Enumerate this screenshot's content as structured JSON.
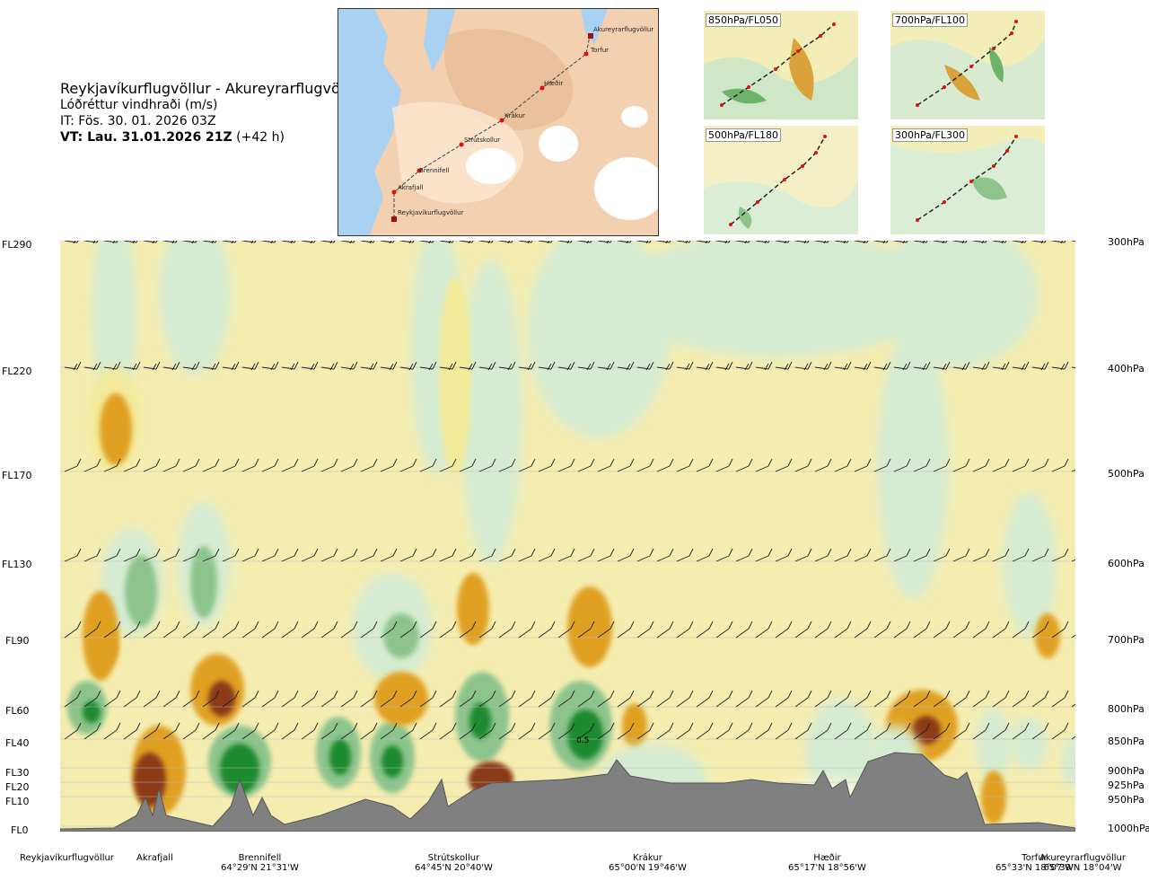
{
  "header": {
    "title": "Reykjavíkurflugvöllur - Akureyrarflugvöllur",
    "subtitle": "Lóðréttur vindhraði (m/s)",
    "issue_time": "IT: Fös. 30. 01. 2026 03Z",
    "valid_time_bold": "VT: Lau. 31.01.2026 21Z",
    "valid_time_offset": "(+42 h)"
  },
  "route_map": {
    "waypoints": [
      "Akureyrarflugvöllur",
      "Torfur",
      "Hæðir",
      "Krákur",
      "Strútskollur",
      "Brennifell",
      "Akrafjall",
      "Reykjavíkurflugvöllur"
    ]
  },
  "insets": [
    {
      "label": "850hPa/FL050"
    },
    {
      "label": "700hPa/FL100"
    },
    {
      "label": "500hPa/FL180"
    },
    {
      "label": "300hPa/FL300"
    }
  ],
  "chart_data": {
    "type": "heatmap",
    "title": "Lóðréttur vindhraði (m/s)",
    "y_left_ticks": [
      "FL290",
      "FL220",
      "FL170",
      "FL130",
      "FL90",
      "FL60",
      "FL40",
      "FL30",
      "FL20",
      "FL10",
      "FL0"
    ],
    "y_right_ticks": [
      "300hPa",
      "400hPa",
      "500hPa",
      "600hPa",
      "700hPa",
      "800hPa",
      "850hPa",
      "900hPa",
      "925hPa",
      "950hPa",
      "1000hPa"
    ],
    "pressure_levels_hpa": [
      300,
      400,
      500,
      600,
      700,
      800,
      850,
      900,
      925,
      950,
      1000
    ],
    "x_waypoints": [
      {
        "name": "Reykjavíkurflugvöllur",
        "coord": ""
      },
      {
        "name": "Akrafjall",
        "coord": ""
      },
      {
        "name": "Brennifell",
        "coord": "64°29'N 21°31'W"
      },
      {
        "name": "Strútskollur",
        "coord": "64°45'N 20°40'W"
      },
      {
        "name": "Krákur",
        "coord": "65°00'N 19°46'W"
      },
      {
        "name": "Hæðir",
        "coord": "65°17'N 18°56'W"
      },
      {
        "name": "Torfur",
        "coord": "65°33'N 18°07'W"
      },
      {
        "name": "Akureyrarflugvöllur",
        "coord": "65°39'N 18°04'W"
      }
    ],
    "grid": true,
    "annotations": [
      "0.5"
    ]
  },
  "colors": {
    "strong_up": "#8b3a14",
    "up": "#e0a020",
    "weak_up": "#f3ea9a",
    "neutral": "#fbf8dc",
    "weak_down": "#d5ecd2",
    "down": "#8cc48c",
    "strong_down": "#1e8a2e",
    "terrain": "#808080",
    "water": "#9ec9ef",
    "land": "#f1c9a8"
  }
}
